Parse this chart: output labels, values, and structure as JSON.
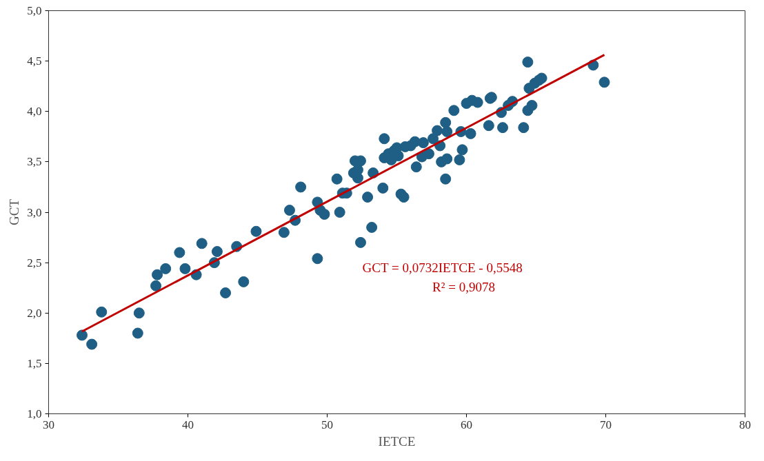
{
  "chart_data": {
    "type": "scatter",
    "xlabel": "IETCE",
    "ylabel": "GCT",
    "xlim": [
      30,
      80
    ],
    "xticks": [
      30,
      40,
      50,
      60,
      70,
      80
    ],
    "ylim": [
      1.0,
      5.0
    ],
    "yticks": [
      {
        "value": 1.0,
        "label": "1,0"
      },
      {
        "value": 1.5,
        "label": "1,5"
      },
      {
        "value": 2.0,
        "label": "2,0"
      },
      {
        "value": 2.5,
        "label": "2,5"
      },
      {
        "value": 3.0,
        "label": "3,0"
      },
      {
        "value": 3.5,
        "label": "3,5"
      },
      {
        "value": 4.0,
        "label": "4,0"
      },
      {
        "value": 4.5,
        "label": "4,5"
      },
      {
        "value": 5.0,
        "label": "5,0"
      }
    ],
    "grid": false,
    "series": [
      {
        "marker": "circle",
        "color": "#1f5f85",
        "x": [
          32.4,
          33.1,
          33.8,
          36.5,
          36.4,
          37.7,
          37.8,
          38.4,
          39.4,
          39.8,
          40.6,
          41.0,
          41.9,
          42.1,
          42.7,
          43.5,
          44.0,
          44.9,
          46.9,
          47.3,
          47.7,
          48.1,
          49.3,
          49.3,
          49.5,
          49.8,
          50.7,
          50.9,
          51.1,
          51.4,
          51.9,
          52.0,
          52.2,
          52.2,
          52.4,
          52.4,
          52.9,
          53.2,
          53.3,
          54.0,
          54.1,
          54.1,
          54.4,
          54.6,
          54.8,
          55.0,
          55.1,
          55.3,
          55.5,
          55.6,
          56.0,
          56.3,
          56.4,
          56.8,
          56.9,
          57.3,
          57.6,
          57.9,
          58.1,
          58.2,
          58.5,
          58.5,
          58.6,
          58.6,
          59.1,
          59.5,
          59.6,
          59.7,
          60.0,
          60.3,
          60.4,
          60.8,
          61.6,
          61.7,
          61.8,
          62.5,
          62.6,
          63.0,
          63.3,
          64.1,
          64.4,
          64.4,
          64.5,
          64.7,
          64.9,
          65.2,
          65.4,
          69.1,
          69.9
        ],
        "values": [
          1.78,
          1.69,
          2.01,
          2.0,
          1.8,
          2.27,
          2.38,
          2.44,
          2.6,
          2.44,
          2.38,
          2.69,
          2.5,
          2.61,
          2.2,
          2.66,
          2.31,
          2.81,
          2.8,
          3.02,
          2.92,
          3.25,
          3.1,
          2.54,
          3.02,
          2.98,
          3.33,
          3.0,
          3.19,
          3.19,
          3.39,
          3.51,
          3.34,
          3.42,
          3.51,
          2.7,
          3.15,
          2.85,
          3.39,
          3.24,
          3.73,
          3.54,
          3.58,
          3.52,
          3.61,
          3.64,
          3.56,
          3.18,
          3.15,
          3.65,
          3.66,
          3.7,
          3.45,
          3.55,
          3.69,
          3.58,
          3.73,
          3.81,
          3.66,
          3.5,
          3.89,
          3.33,
          3.53,
          3.8,
          4.01,
          3.52,
          3.8,
          3.62,
          4.08,
          3.78,
          4.11,
          4.09,
          3.86,
          4.13,
          4.14,
          3.99,
          3.84,
          4.06,
          4.1,
          3.84,
          4.01,
          4.49,
          4.23,
          4.06,
          4.28,
          4.31,
          4.33,
          4.46,
          4.29
        ]
      },
      {
        "type": "line",
        "color": "#c00000",
        "x": [
          32.4,
          69.9
        ],
        "values": [
          1.817,
          4.562
        ],
        "line_style": "solid"
      }
    ],
    "annotations": [
      "GCT = 0,0732IETCE  - 0,5548",
      "R² = 0,9078"
    ]
  }
}
